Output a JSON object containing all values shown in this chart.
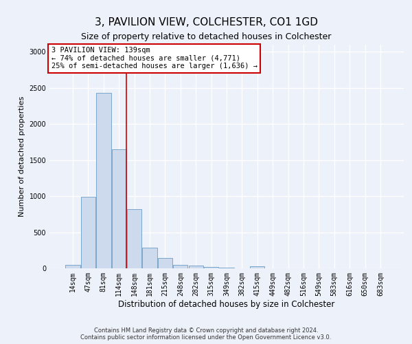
{
  "title": "3, PAVILION VIEW, COLCHESTER, CO1 1GD",
  "subtitle": "Size of property relative to detached houses in Colchester",
  "xlabel": "Distribution of detached houses by size in Colchester",
  "ylabel": "Number of detached properties",
  "categories": [
    "14sqm",
    "47sqm",
    "81sqm",
    "114sqm",
    "148sqm",
    "181sqm",
    "215sqm",
    "248sqm",
    "282sqm",
    "315sqm",
    "349sqm",
    "382sqm",
    "415sqm",
    "449sqm",
    "482sqm",
    "516sqm",
    "549sqm",
    "583sqm",
    "616sqm",
    "650sqm",
    "683sqm"
  ],
  "values": [
    52,
    990,
    2430,
    1650,
    820,
    285,
    145,
    52,
    35,
    22,
    5,
    3,
    30,
    2,
    0,
    0,
    0,
    0,
    0,
    0,
    0
  ],
  "bar_color": "#cddaed",
  "bar_edge_color": "#6a9dc8",
  "annotation_text": "3 PAVILION VIEW: 139sqm\n← 74% of detached houses are smaller (4,771)\n25% of semi-detached houses are larger (1,636) →",
  "annotation_box_color": "#ffffff",
  "annotation_box_edge_color": "#cc0000",
  "red_line_x": 3.5,
  "ylim": [
    0,
    3100
  ],
  "yticks": [
    0,
    500,
    1000,
    1500,
    2000,
    2500,
    3000
  ],
  "footer": "Contains HM Land Registry data © Crown copyright and database right 2024.\nContains public sector information licensed under the Open Government Licence v3.0.",
  "background_color": "#edf1f9",
  "grid_color": "#ffffff",
  "title_fontsize": 11,
  "subtitle_fontsize": 9,
  "tick_fontsize": 7,
  "ylabel_fontsize": 8,
  "xlabel_fontsize": 8.5,
  "annotation_fontsize": 7.5,
  "footer_fontsize": 6
}
